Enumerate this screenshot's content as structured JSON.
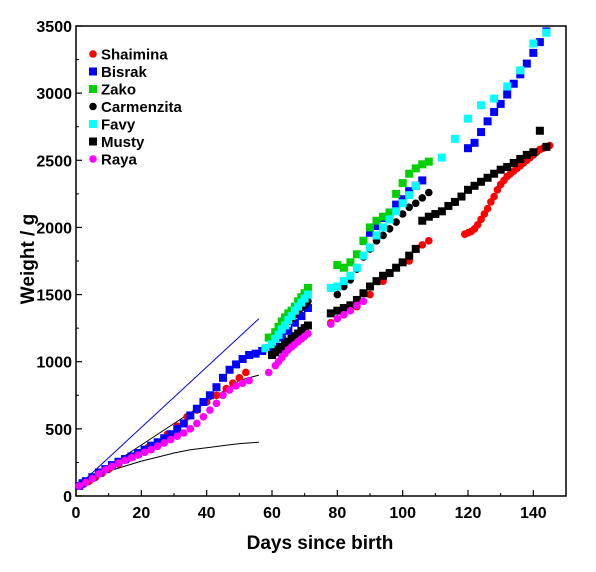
{
  "chart_data": {
    "type": "scatter",
    "title": "",
    "xlabel": "Days since birth",
    "ylabel": "Weight / g",
    "xlim": [
      0,
      150
    ],
    "ylim": [
      0,
      3500
    ],
    "xticks": [
      "0",
      "20",
      "40",
      "60",
      "80",
      "100",
      "120",
      "140"
    ],
    "yticks": [
      "0",
      "500",
      "1000",
      "1500",
      "2000",
      "2500",
      "3000",
      "3500"
    ],
    "grid": false,
    "legend_position": "top-left",
    "series": [
      {
        "name": "Shaimina",
        "color": "#ff0000",
        "marker": "circle",
        "x": [
          2,
          4,
          6,
          8,
          10,
          13,
          16,
          19,
          22,
          25,
          28,
          31,
          34,
          37,
          40,
          43,
          46,
          48,
          50,
          52,
          78,
          82,
          86,
          90,
          94,
          98,
          102,
          106,
          108,
          119,
          120,
          121,
          122,
          123,
          124,
          125,
          126,
          127,
          128,
          129,
          130,
          131,
          132,
          133,
          134,
          135,
          136,
          137,
          138,
          139,
          140,
          141,
          142,
          143,
          144,
          145
        ],
        "y": [
          85,
          110,
          140,
          170,
          200,
          240,
          280,
          320,
          360,
          400,
          460,
          520,
          590,
          640,
          700,
          750,
          800,
          840,
          880,
          920,
          1290,
          1350,
          1410,
          1500,
          1600,
          1700,
          1750,
          1870,
          1900,
          1950,
          1960,
          1970,
          1990,
          2020,
          2060,
          2100,
          2140,
          2190,
          2230,
          2280,
          2320,
          2350,
          2380,
          2400,
          2420,
          2440,
          2460,
          2480,
          2500,
          2520,
          2540,
          2560,
          2580,
          2590,
          2600,
          2610
        ]
      },
      {
        "name": "Bisrak",
        "color": "#0000ff",
        "marker": "square",
        "x": [
          1,
          2,
          3,
          5,
          7,
          9,
          11,
          13,
          15,
          17,
          19,
          21,
          23,
          25,
          27,
          29,
          31,
          33,
          35,
          37,
          39,
          41,
          43,
          45,
          47,
          49,
          51,
          53,
          55,
          57,
          59,
          61,
          63,
          65,
          67,
          69,
          71,
          88,
          90,
          92,
          94,
          96,
          98,
          100,
          102,
          104,
          106,
          120,
          122,
          124,
          126,
          128,
          130,
          132,
          134,
          136,
          138,
          140,
          142,
          144
        ],
        "y": [
          75,
          95,
          110,
          140,
          175,
          200,
          230,
          255,
          275,
          295,
          320,
          345,
          375,
          400,
          430,
          460,
          500,
          540,
          600,
          650,
          700,
          750,
          810,
          880,
          940,
          980,
          1020,
          1050,
          1060,
          1080,
          1100,
          1140,
          1180,
          1230,
          1290,
          1340,
          1400,
          1900,
          1960,
          2010,
          2070,
          2110,
          2170,
          2210,
          2270,
          2310,
          2350,
          2590,
          2630,
          2710,
          2790,
          2860,
          2920,
          2990,
          3070,
          3140,
          3220,
          3300,
          3380,
          3460
        ]
      },
      {
        "name": "Zako",
        "color": "#00d000",
        "marker": "square",
        "x": [
          59,
          61,
          62,
          63,
          64,
          65,
          66,
          67,
          68,
          69,
          70,
          71,
          80,
          82,
          84,
          86,
          88,
          90,
          92,
          94,
          96,
          98,
          100,
          102,
          104,
          106,
          108
        ],
        "y": [
          1180,
          1220,
          1260,
          1300,
          1330,
          1360,
          1380,
          1410,
          1450,
          1480,
          1510,
          1550,
          1720,
          1700,
          1740,
          1800,
          1900,
          2000,
          2050,
          2080,
          2110,
          2250,
          2330,
          2400,
          2440,
          2470,
          2490
        ]
      },
      {
        "name": "Carmenzita",
        "color": "#000000",
        "marker": "circle",
        "x": [
          60,
          61,
          62,
          63,
          64,
          65,
          66,
          67,
          68,
          69,
          70,
          71,
          80,
          82,
          84,
          86,
          88,
          90,
          92,
          94,
          96,
          98,
          100,
          102,
          104,
          106,
          108
        ],
        "y": [
          1130,
          1170,
          1200,
          1240,
          1270,
          1300,
          1320,
          1350,
          1380,
          1400,
          1420,
          1450,
          1500,
          1560,
          1610,
          1690,
          1780,
          1840,
          1900,
          1940,
          1990,
          2040,
          2100,
          2150,
          2180,
          2220,
          2260
        ]
      },
      {
        "name": "Favy",
        "color": "#00ffff",
        "marker": "square",
        "x": [
          58,
          60,
          61,
          62,
          63,
          64,
          65,
          66,
          67,
          68,
          69,
          70,
          71,
          78,
          80,
          82,
          84,
          86,
          88,
          90,
          92,
          94,
          96,
          98,
          100,
          102,
          104,
          112,
          116,
          120,
          124,
          128,
          132,
          136,
          140,
          144
        ],
        "y": [
          1100,
          1130,
          1170,
          1200,
          1240,
          1270,
          1310,
          1340,
          1380,
          1410,
          1440,
          1470,
          1500,
          1550,
          1560,
          1600,
          1640,
          1700,
          1790,
          1850,
          1940,
          2000,
          2060,
          2120,
          2180,
          2240,
          2310,
          2520,
          2660,
          2810,
          2910,
          2960,
          3050,
          3170,
          3370,
          3450
        ]
      },
      {
        "name": "Musty",
        "color": "#000000",
        "marker": "square",
        "x": [
          60,
          61,
          62,
          63,
          64,
          65,
          66,
          67,
          68,
          69,
          70,
          71,
          78,
          80,
          82,
          84,
          86,
          88,
          90,
          92,
          94,
          96,
          98,
          100,
          102,
          104,
          106,
          108,
          110,
          112,
          114,
          116,
          118,
          120,
          122,
          124,
          126,
          128,
          130,
          132,
          134,
          136,
          138,
          140,
          142,
          144
        ],
        "y": [
          1050,
          1070,
          1090,
          1110,
          1130,
          1150,
          1170,
          1190,
          1210,
          1230,
          1250,
          1270,
          1360,
          1380,
          1400,
          1420,
          1460,
          1510,
          1560,
          1600,
          1640,
          1660,
          1700,
          1740,
          1790,
          1840,
          2050,
          2080,
          2100,
          2120,
          2160,
          2190,
          2230,
          2280,
          2310,
          2340,
          2370,
          2400,
          2430,
          2450,
          2480,
          2510,
          2540,
          2560,
          2720,
          2600
        ]
      },
      {
        "name": "Raya",
        "color": "#ff00ff",
        "marker": "circle",
        "x": [
          1,
          3,
          5,
          7,
          9,
          11,
          13,
          15,
          17,
          19,
          21,
          23,
          25,
          27,
          29,
          31,
          33,
          35,
          37,
          39,
          41,
          43,
          45,
          47,
          49,
          51,
          53,
          59,
          61,
          62,
          63,
          64,
          65,
          66,
          67,
          68,
          69,
          70,
          71,
          78,
          80,
          82,
          84,
          86,
          88
        ],
        "y": [
          75,
          100,
          130,
          165,
          195,
          220,
          245,
          265,
          285,
          305,
          325,
          345,
          370,
          395,
          420,
          445,
          470,
          500,
          540,
          590,
          640,
          690,
          750,
          790,
          820,
          840,
          860,
          920,
          970,
          1000,
          1030,
          1060,
          1090,
          1110,
          1130,
          1150,
          1170,
          1190,
          1210,
          1280,
          1320,
          1350,
          1380,
          1420,
          1450
        ]
      }
    ],
    "lines": [
      {
        "color": "#0000ff",
        "x": [
          0,
          56
        ],
        "y": [
          60,
          1320
        ]
      },
      {
        "color": "#000000",
        "x": [
          6,
          8,
          12,
          16,
          20,
          25,
          30,
          35,
          40,
          45,
          50,
          56
        ],
        "y": [
          150,
          170,
          200,
          230,
          260,
          290,
          320,
          345,
          360,
          375,
          390,
          400
        ]
      },
      {
        "color": "#000000",
        "x": [
          0,
          10,
          20,
          30,
          40,
          50,
          56
        ],
        "y": [
          60,
          220,
          380,
          540,
          700,
          860,
          900
        ]
      }
    ]
  }
}
